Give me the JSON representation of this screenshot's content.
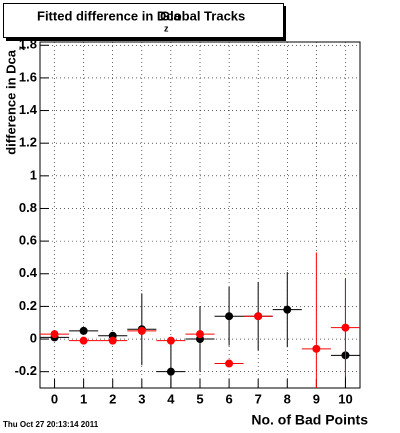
{
  "chart_data": {
    "type": "errorbar",
    "title": "Fitted difference in Dca",
    "title_subscript": "z",
    "title_end": "Global Tracks",
    "y_label": "difference in Dca",
    "y_label_subscript": "z",
    "x_label": "No. of Bad Points",
    "footer": "Thu Oct 27 20:13:14 2011",
    "x": [
      0,
      1,
      2,
      3,
      4,
      5,
      6,
      7,
      8,
      9,
      10
    ],
    "x_error": 0.5,
    "series": [
      {
        "color": "#000000",
        "values": [
          0.01,
          0.05,
          0.02,
          0.06,
          -0.2,
          0.0,
          0.14,
          0.14,
          0.18,
          null,
          -0.1
        ],
        "errors": [
          0.02,
          0.02,
          0.02,
          0.22,
          0.21,
          0.2,
          0.18,
          0.21,
          0.23,
          null,
          0.47
        ]
      },
      {
        "color": "#ff0000",
        "values": [
          0.03,
          -0.01,
          -0.01,
          0.05,
          -0.01,
          0.03,
          -0.15,
          0.14,
          null,
          -0.06,
          0.07
        ],
        "errors": [
          0.02,
          0.02,
          0.02,
          0.02,
          0.02,
          0.02,
          0.02,
          0.02,
          null,
          0.59,
          0.3
        ]
      }
    ],
    "xlim": [
      -0.5,
      10.5
    ],
    "xticks": [
      0,
      1,
      2,
      3,
      4,
      5,
      6,
      7,
      8,
      9,
      10
    ],
    "ylim": [
      -0.3,
      1.82
    ],
    "yticks": [
      -0.2,
      0,
      0.2,
      0.4,
      0.6,
      0.8,
      1,
      1.2,
      1.4,
      1.6,
      1.8
    ],
    "grid": true
  }
}
